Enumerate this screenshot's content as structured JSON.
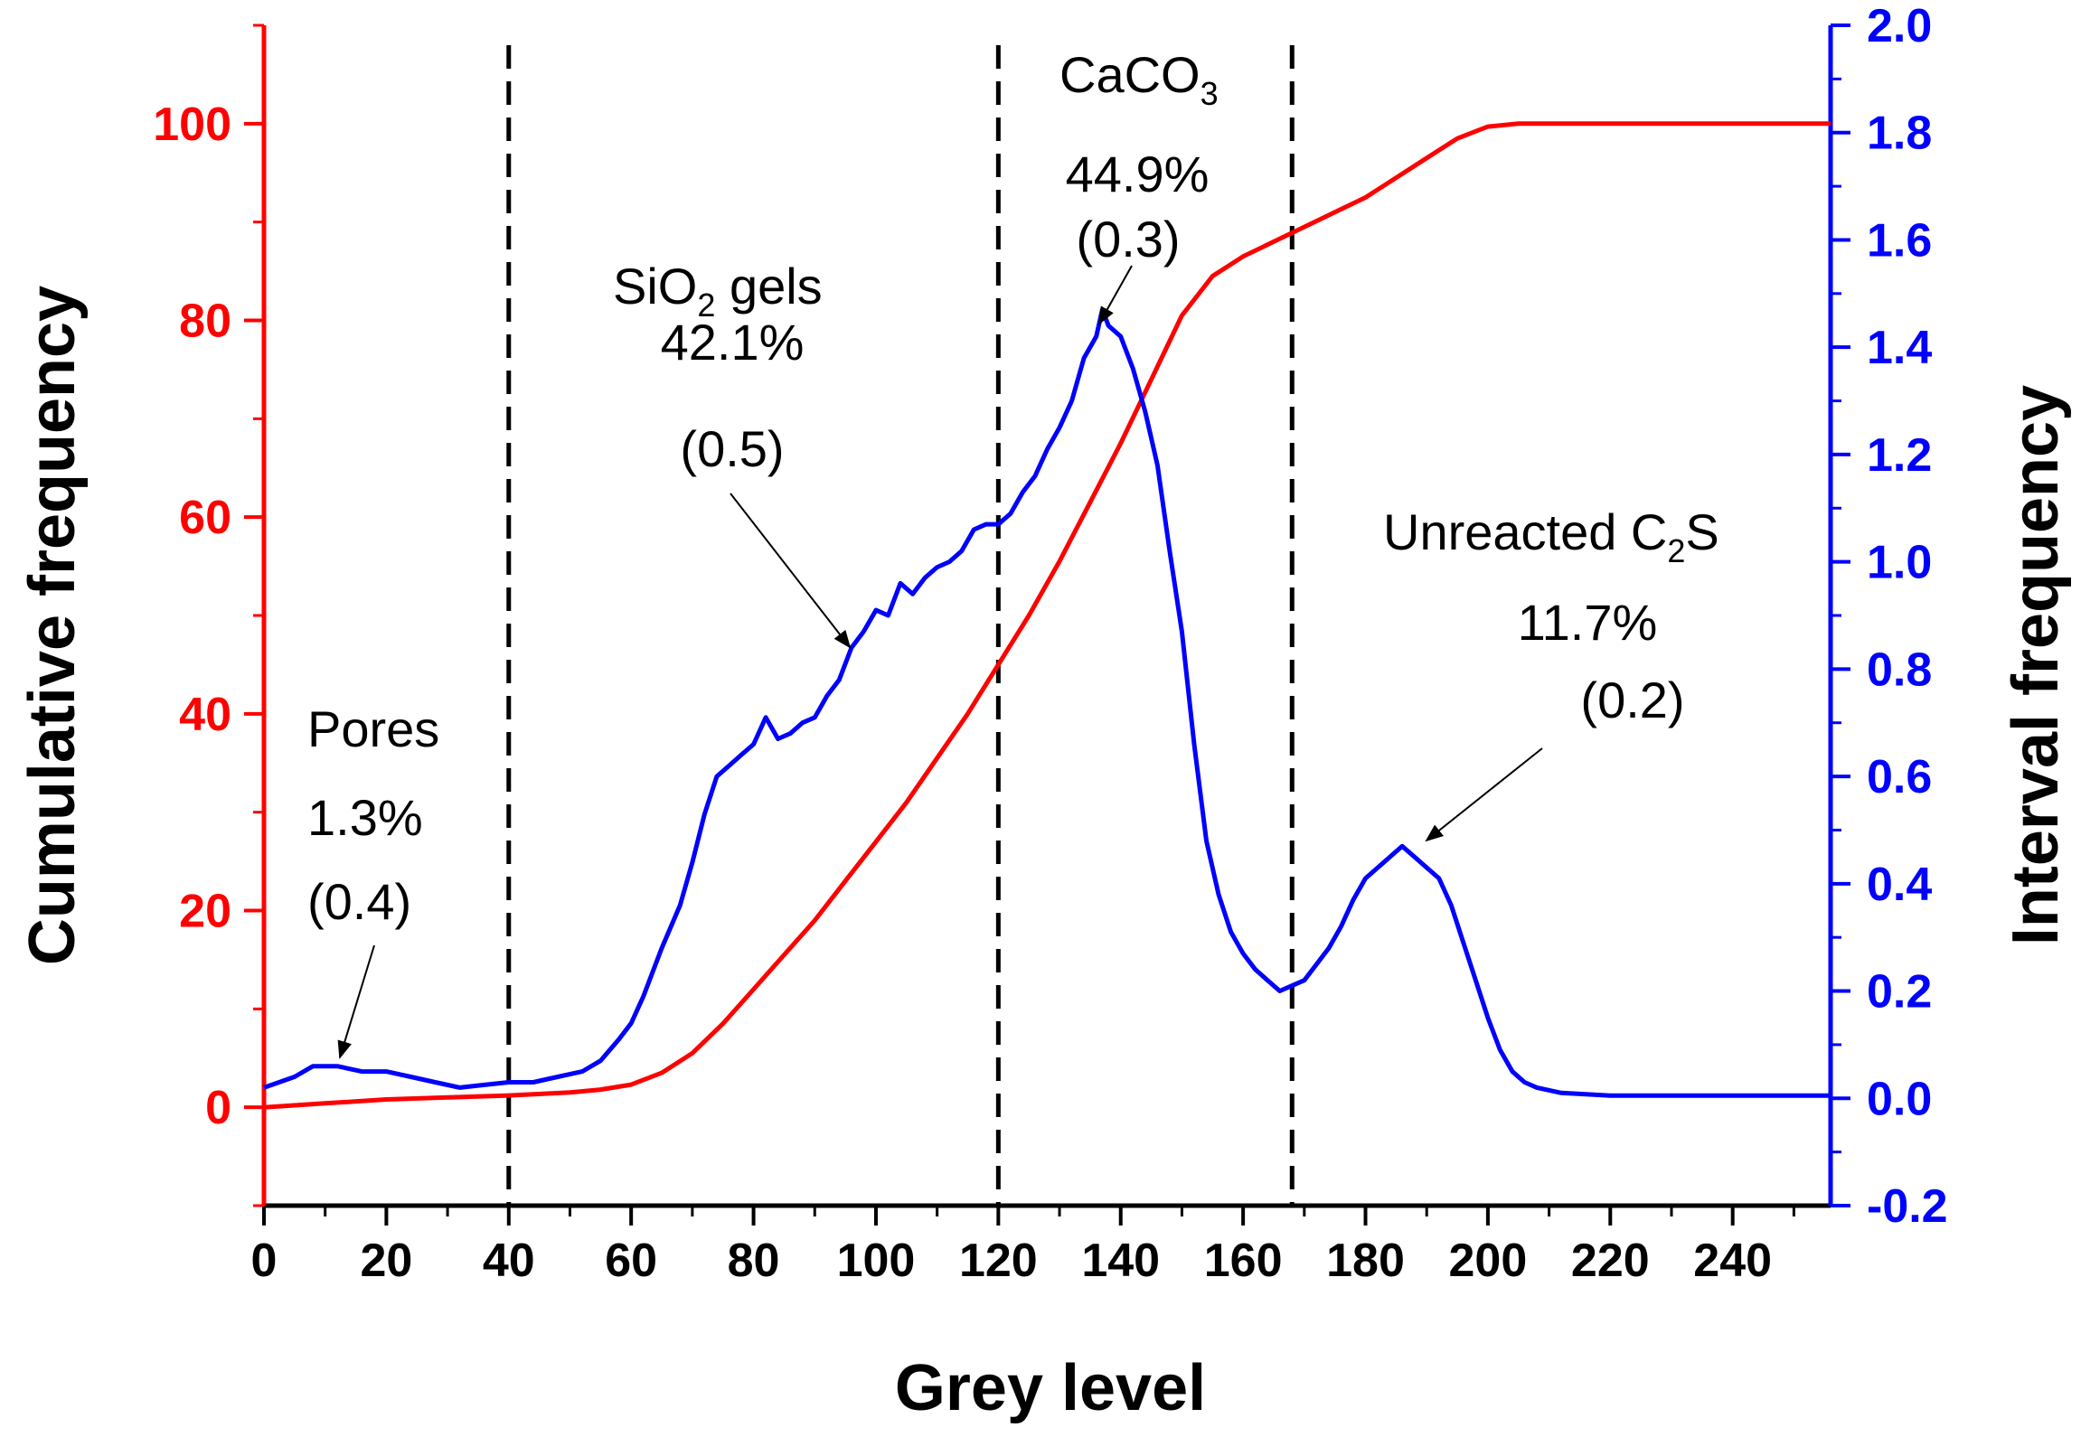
{
  "chart_data": {
    "type": "line",
    "xlabel": "Grey level",
    "ylabel_left": "Cumulative frequency",
    "ylabel_right": "Interval frequency",
    "xlim": [
      0,
      256
    ],
    "ylim_left": [
      -10,
      110
    ],
    "ylim_right": [
      -0.2,
      2.0
    ],
    "x_ticks": [
      0,
      20,
      40,
      60,
      80,
      100,
      120,
      140,
      160,
      180,
      200,
      220,
      240
    ],
    "y_left_ticks": [
      0,
      20,
      40,
      60,
      80,
      100
    ],
    "y_right_ticks": [
      -0.2,
      0.0,
      0.2,
      0.4,
      0.6,
      0.8,
      1.0,
      1.2,
      1.4,
      1.6,
      1.8,
      2.0
    ],
    "x_tick_labels": [
      "0",
      "20",
      "40",
      "60",
      "80",
      "100",
      "120",
      "140",
      "160",
      "180",
      "200",
      "220",
      "240"
    ],
    "y_left_tick_labels": [
      "0",
      "20",
      "40",
      "60",
      "80",
      "100"
    ],
    "y_right_tick_labels": [
      "-0.2",
      "0.0",
      "0.2",
      "0.4",
      "0.6",
      "0.8",
      "1.0",
      "1.2",
      "1.4",
      "1.6",
      "1.8",
      "2.0"
    ],
    "grid": false,
    "colors": {
      "cumulative": "#ff0000",
      "interval": "#0000ff",
      "divider": "#000000"
    },
    "dividers": [
      40,
      120,
      168
    ],
    "series": [
      {
        "axis": "left",
        "color": "#ff0000",
        "points": [
          [
            0,
            0
          ],
          [
            10,
            0.4
          ],
          [
            20,
            0.8
          ],
          [
            30,
            1.0
          ],
          [
            40,
            1.2
          ],
          [
            50,
            1.5
          ],
          [
            55,
            1.8
          ],
          [
            60,
            2.3
          ],
          [
            65,
            3.5
          ],
          [
            70,
            5.5
          ],
          [
            75,
            8.5
          ],
          [
            80,
            12
          ],
          [
            85,
            15.5
          ],
          [
            90,
            19
          ],
          [
            95,
            23
          ],
          [
            100,
            27
          ],
          [
            105,
            31
          ],
          [
            110,
            35.5
          ],
          [
            115,
            40
          ],
          [
            120,
            45
          ],
          [
            125,
            50
          ],
          [
            130,
            55.5
          ],
          [
            135,
            61.5
          ],
          [
            140,
            67.5
          ],
          [
            145,
            74
          ],
          [
            150,
            80.5
          ],
          [
            155,
            84.5
          ],
          [
            160,
            86.5
          ],
          [
            165,
            88
          ],
          [
            170,
            89.5
          ],
          [
            175,
            91
          ],
          [
            180,
            92.5
          ],
          [
            185,
            94.5
          ],
          [
            190,
            96.5
          ],
          [
            195,
            98.5
          ],
          [
            200,
            99.7
          ],
          [
            205,
            100
          ],
          [
            256,
            100
          ]
        ]
      },
      {
        "axis": "right",
        "color": "#0000ff",
        "points": [
          [
            0,
            0.02
          ],
          [
            5,
            0.04
          ],
          [
            8,
            0.06
          ],
          [
            12,
            0.06
          ],
          [
            16,
            0.05
          ],
          [
            20,
            0.05
          ],
          [
            24,
            0.04
          ],
          [
            28,
            0.03
          ],
          [
            32,
            0.02
          ],
          [
            36,
            0.025
          ],
          [
            40,
            0.03
          ],
          [
            44,
            0.03
          ],
          [
            48,
            0.04
          ],
          [
            52,
            0.05
          ],
          [
            55,
            0.07
          ],
          [
            58,
            0.11
          ],
          [
            60,
            0.14
          ],
          [
            62,
            0.19
          ],
          [
            65,
            0.28
          ],
          [
            68,
            0.36
          ],
          [
            70,
            0.44
          ],
          [
            72,
            0.53
          ],
          [
            74,
            0.6
          ],
          [
            76,
            0.62
          ],
          [
            78,
            0.64
          ],
          [
            80,
            0.66
          ],
          [
            82,
            0.71
          ],
          [
            84,
            0.67
          ],
          [
            86,
            0.68
          ],
          [
            88,
            0.7
          ],
          [
            90,
            0.71
          ],
          [
            92,
            0.75
          ],
          [
            94,
            0.78
          ],
          [
            96,
            0.84
          ],
          [
            98,
            0.87
          ],
          [
            100,
            0.91
          ],
          [
            102,
            0.9
          ],
          [
            104,
            0.96
          ],
          [
            106,
            0.94
          ],
          [
            108,
            0.97
          ],
          [
            110,
            0.99
          ],
          [
            112,
            1.0
          ],
          [
            114,
            1.02
          ],
          [
            116,
            1.06
          ],
          [
            118,
            1.07
          ],
          [
            120,
            1.07
          ],
          [
            122,
            1.09
          ],
          [
            124,
            1.13
          ],
          [
            126,
            1.16
          ],
          [
            128,
            1.21
          ],
          [
            130,
            1.25
          ],
          [
            132,
            1.3
          ],
          [
            134,
            1.38
          ],
          [
            136,
            1.42
          ],
          [
            137,
            1.47
          ],
          [
            138,
            1.44
          ],
          [
            140,
            1.42
          ],
          [
            142,
            1.36
          ],
          [
            144,
            1.28
          ],
          [
            146,
            1.18
          ],
          [
            148,
            1.02
          ],
          [
            150,
            0.87
          ],
          [
            152,
            0.66
          ],
          [
            154,
            0.48
          ],
          [
            156,
            0.38
          ],
          [
            158,
            0.31
          ],
          [
            160,
            0.27
          ],
          [
            162,
            0.24
          ],
          [
            164,
            0.22
          ],
          [
            166,
            0.2
          ],
          [
            168,
            0.21
          ],
          [
            170,
            0.22
          ],
          [
            172,
            0.25
          ],
          [
            174,
            0.28
          ],
          [
            176,
            0.32
          ],
          [
            178,
            0.37
          ],
          [
            180,
            0.41
          ],
          [
            182,
            0.43
          ],
          [
            184,
            0.45
          ],
          [
            186,
            0.47
          ],
          [
            188,
            0.45
          ],
          [
            190,
            0.43
          ],
          [
            192,
            0.41
          ],
          [
            194,
            0.36
          ],
          [
            196,
            0.29
          ],
          [
            198,
            0.22
          ],
          [
            200,
            0.15
          ],
          [
            202,
            0.09
          ],
          [
            204,
            0.05
          ],
          [
            206,
            0.03
          ],
          [
            208,
            0.02
          ],
          [
            212,
            0.01
          ],
          [
            220,
            0.005
          ],
          [
            256,
            0.005
          ]
        ]
      }
    ],
    "annotations": [
      {
        "lines": [
          "Pores",
          "1.3%",
          "(0.4)"
        ]
      },
      {
        "lines": [
          "SiO2 gels",
          "42.1%",
          "(0.5)"
        ]
      },
      {
        "lines": [
          "CaCO3",
          "44.9%",
          "(0.3)"
        ]
      },
      {
        "lines": [
          "Unreacted C2S",
          "11.7%",
          "(0.2)"
        ]
      }
    ]
  }
}
